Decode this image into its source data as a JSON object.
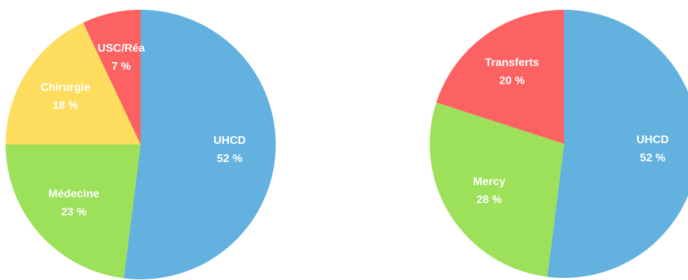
{
  "chart_data": [
    {
      "type": "pie",
      "categories": [
        "UHCD",
        "Médecine",
        "Chirurgie",
        "USC/Réa"
      ],
      "values": [
        52,
        23,
        18,
        7
      ],
      "value_labels": [
        "52 %",
        "23 %",
        "18 %",
        "7 %"
      ],
      "colors": [
        "#63b1de",
        "#9de05a",
        "#fedc5e",
        "#fd6262"
      ]
    },
    {
      "type": "pie",
      "categories": [
        "UHCD",
        "Mercy",
        "Transferts"
      ],
      "values": [
        52,
        28,
        20
      ],
      "value_labels": [
        "52 %",
        "28 %",
        "20 %"
      ],
      "colors": [
        "#63b1de",
        "#9de05a",
        "#fd6262"
      ]
    }
  ]
}
